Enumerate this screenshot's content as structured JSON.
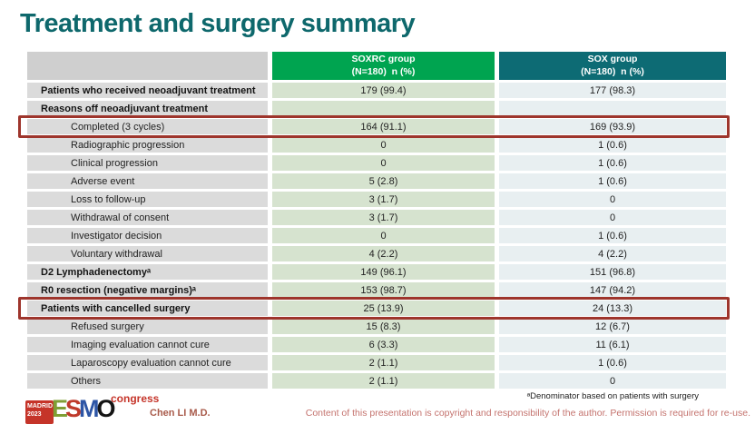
{
  "slide": {
    "title": "Treatment and surgery summary",
    "footnote": "ᵃDenominator based on patients with surgery",
    "copyright": "Content of this presentation is copyright and responsibility of the author. Permission is required for re-use.",
    "author": "Chen LI M.D."
  },
  "logo": {
    "city": "MADRID",
    "year": "2023",
    "letters": [
      "E",
      "S",
      "M",
      "O"
    ],
    "congress": "congress"
  },
  "colors": {
    "title_teal": "#0e686c",
    "soxrc_header_green": "#00a450",
    "sox_header_teal": "#0d6b74",
    "soxrc_col_bg": "#d6e3cf",
    "sox_col_bg": "#e8eff1",
    "label_col_bg": "#dbdbdb",
    "highlight_red": "#9e352c",
    "logo_red": "#c53429"
  },
  "table": {
    "columns": [
      {
        "label": "SOXRC group",
        "sublabel": "(N=180)  n (%)"
      },
      {
        "label": "SOX group",
        "sublabel": "(N=180)  n (%)"
      }
    ],
    "rows": [
      {
        "label": "Patients who received neoadjuvant treatment",
        "bold": true,
        "indent": false,
        "soxrc": "179 (99.4)",
        "sox": "177 (98.3)",
        "highlight": false
      },
      {
        "label": "Reasons off neoadjuvant treatment",
        "bold": true,
        "indent": false,
        "soxrc": "",
        "sox": "",
        "highlight": false
      },
      {
        "label": "Completed (3 cycles)",
        "bold": false,
        "indent": true,
        "soxrc": "164 (91.1)",
        "sox": "169 (93.9)",
        "highlight": true
      },
      {
        "label": "Radiographic progression",
        "bold": false,
        "indent": true,
        "soxrc": "0",
        "sox": "1 (0.6)",
        "highlight": false
      },
      {
        "label": "Clinical progression",
        "bold": false,
        "indent": true,
        "soxrc": "0",
        "sox": "1 (0.6)",
        "highlight": false
      },
      {
        "label": "Adverse event",
        "bold": false,
        "indent": true,
        "soxrc": "5 (2.8)",
        "sox": "1 (0.6)",
        "highlight": false
      },
      {
        "label": "Loss to follow-up",
        "bold": false,
        "indent": true,
        "soxrc": "3 (1.7)",
        "sox": "0",
        "highlight": false
      },
      {
        "label": "Withdrawal of consent",
        "bold": false,
        "indent": true,
        "soxrc": "3 (1.7)",
        "sox": "0",
        "highlight": false
      },
      {
        "label": "Investigator decision",
        "bold": false,
        "indent": true,
        "soxrc": "0",
        "sox": "1 (0.6)",
        "highlight": false
      },
      {
        "label": "Voluntary withdrawal",
        "bold": false,
        "indent": true,
        "soxrc": "4 (2.2)",
        "sox": "4 (2.2)",
        "highlight": false
      },
      {
        "label": "D2 Lymphadenectomyᵃ",
        "bold": true,
        "indent": false,
        "soxrc": "149 (96.1)",
        "sox": "151 (96.8)",
        "highlight": false
      },
      {
        "label": "R0 resection (negative margins)ᵃ",
        "bold": true,
        "indent": false,
        "soxrc": "153 (98.7)",
        "sox": "147 (94.2)",
        "highlight": false
      },
      {
        "label": "Patients with cancelled surgery",
        "bold": true,
        "indent": false,
        "soxrc": "25 (13.9)",
        "sox": "24 (13.3)",
        "highlight": true
      },
      {
        "label": "Refused surgery",
        "bold": false,
        "indent": true,
        "soxrc": "15 (8.3)",
        "sox": "12 (6.7)",
        "highlight": false
      },
      {
        "label": "Imaging evaluation cannot cure",
        "bold": false,
        "indent": true,
        "soxrc": "6 (3.3)",
        "sox": "11 (6.1)",
        "highlight": false
      },
      {
        "label": "Laparoscopy evaluation cannot cure",
        "bold": false,
        "indent": true,
        "soxrc": "2 (1.1)",
        "sox": "1 (0.6)",
        "highlight": false
      },
      {
        "label": "Others",
        "bold": false,
        "indent": true,
        "soxrc": "2 (1.1)",
        "sox": "0",
        "highlight": false
      }
    ]
  }
}
